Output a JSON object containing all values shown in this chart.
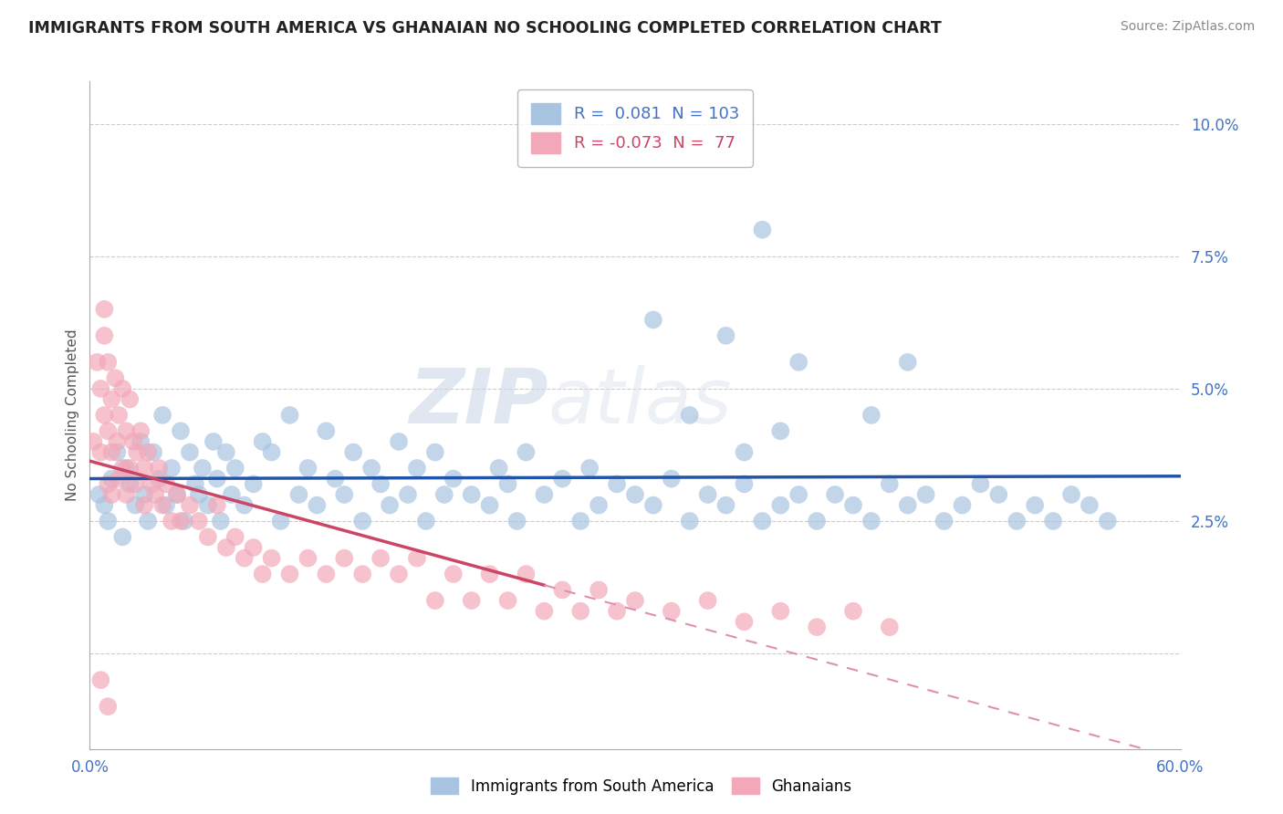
{
  "title": "IMMIGRANTS FROM SOUTH AMERICA VS GHANAIAN NO SCHOOLING COMPLETED CORRELATION CHART",
  "source": "Source: ZipAtlas.com",
  "ylabel_label": "No Schooling Completed",
  "legend_label1": "Immigrants from South America",
  "legend_label2": "Ghanaians",
  "r1": 0.081,
  "n1": 103,
  "r2": -0.073,
  "n2": 77,
  "color1": "#a8c4e0",
  "color2": "#f2a8b8",
  "trendline_color1": "#2255aa",
  "trendline_color2": "#cc4466",
  "trendline_color2_dashed": "#e090a8",
  "xlim": [
    0.0,
    0.6
  ],
  "ylim": [
    -0.018,
    0.108
  ],
  "yticks": [
    0.0,
    0.025,
    0.05,
    0.075,
    0.1
  ],
  "ytick_labels": [
    "",
    "2.5%",
    "5.0%",
    "7.5%",
    "10.0%"
  ],
  "xticks": [
    0.0,
    0.1,
    0.2,
    0.3,
    0.4,
    0.5,
    0.6
  ],
  "xtick_labels": [
    "0.0%",
    "",
    "",
    "",
    "",
    "",
    "60.0%"
  ],
  "watermark_zip": "ZIP",
  "watermark_atlas": "atlas",
  "scatter1_x": [
    0.005,
    0.008,
    0.01,
    0.012,
    0.015,
    0.018,
    0.02,
    0.022,
    0.025,
    0.028,
    0.03,
    0.032,
    0.035,
    0.038,
    0.04,
    0.042,
    0.045,
    0.048,
    0.05,
    0.052,
    0.055,
    0.058,
    0.06,
    0.062,
    0.065,
    0.068,
    0.07,
    0.072,
    0.075,
    0.078,
    0.08,
    0.085,
    0.09,
    0.095,
    0.1,
    0.105,
    0.11,
    0.115,
    0.12,
    0.125,
    0.13,
    0.135,
    0.14,
    0.145,
    0.15,
    0.155,
    0.16,
    0.165,
    0.17,
    0.175,
    0.18,
    0.185,
    0.19,
    0.195,
    0.2,
    0.21,
    0.22,
    0.225,
    0.23,
    0.235,
    0.24,
    0.25,
    0.26,
    0.27,
    0.275,
    0.28,
    0.29,
    0.3,
    0.31,
    0.32,
    0.33,
    0.34,
    0.35,
    0.36,
    0.37,
    0.38,
    0.39,
    0.4,
    0.41,
    0.42,
    0.43,
    0.44,
    0.45,
    0.46,
    0.47,
    0.48,
    0.49,
    0.5,
    0.51,
    0.52,
    0.53,
    0.54,
    0.55,
    0.56,
    0.35,
    0.37,
    0.39,
    0.43,
    0.45,
    0.31,
    0.33,
    0.36,
    0.38
  ],
  "scatter1_y": [
    0.03,
    0.028,
    0.025,
    0.033,
    0.038,
    0.022,
    0.035,
    0.032,
    0.028,
    0.04,
    0.03,
    0.025,
    0.038,
    0.033,
    0.045,
    0.028,
    0.035,
    0.03,
    0.042,
    0.025,
    0.038,
    0.032,
    0.03,
    0.035,
    0.028,
    0.04,
    0.033,
    0.025,
    0.038,
    0.03,
    0.035,
    0.028,
    0.032,
    0.04,
    0.038,
    0.025,
    0.045,
    0.03,
    0.035,
    0.028,
    0.042,
    0.033,
    0.03,
    0.038,
    0.025,
    0.035,
    0.032,
    0.028,
    0.04,
    0.03,
    0.035,
    0.025,
    0.038,
    0.03,
    0.033,
    0.03,
    0.028,
    0.035,
    0.032,
    0.025,
    0.038,
    0.03,
    0.033,
    0.025,
    0.035,
    0.028,
    0.032,
    0.03,
    0.028,
    0.033,
    0.025,
    0.03,
    0.028,
    0.032,
    0.025,
    0.028,
    0.03,
    0.025,
    0.03,
    0.028,
    0.025,
    0.032,
    0.028,
    0.03,
    0.025,
    0.028,
    0.032,
    0.03,
    0.025,
    0.028,
    0.025,
    0.03,
    0.028,
    0.025,
    0.06,
    0.08,
    0.055,
    0.045,
    0.055,
    0.063,
    0.045,
    0.038,
    0.042
  ],
  "scatter2_x": [
    0.002,
    0.004,
    0.006,
    0.006,
    0.008,
    0.008,
    0.01,
    0.01,
    0.01,
    0.012,
    0.012,
    0.012,
    0.014,
    0.015,
    0.016,
    0.016,
    0.018,
    0.018,
    0.02,
    0.02,
    0.022,
    0.022,
    0.024,
    0.025,
    0.026,
    0.028,
    0.03,
    0.03,
    0.032,
    0.034,
    0.036,
    0.038,
    0.04,
    0.042,
    0.045,
    0.048,
    0.05,
    0.055,
    0.06,
    0.065,
    0.07,
    0.075,
    0.08,
    0.085,
    0.09,
    0.095,
    0.1,
    0.11,
    0.12,
    0.13,
    0.14,
    0.15,
    0.16,
    0.17,
    0.18,
    0.19,
    0.2,
    0.21,
    0.22,
    0.23,
    0.24,
    0.25,
    0.26,
    0.27,
    0.28,
    0.29,
    0.3,
    0.32,
    0.34,
    0.36,
    0.38,
    0.4,
    0.42,
    0.44,
    0.006,
    0.008,
    0.01
  ],
  "scatter2_y": [
    0.04,
    0.055,
    0.05,
    0.038,
    0.06,
    0.045,
    0.055,
    0.042,
    0.032,
    0.048,
    0.038,
    0.03,
    0.052,
    0.04,
    0.045,
    0.033,
    0.05,
    0.035,
    0.042,
    0.03,
    0.048,
    0.035,
    0.04,
    0.032,
    0.038,
    0.042,
    0.035,
    0.028,
    0.038,
    0.032,
    0.03,
    0.035,
    0.028,
    0.032,
    0.025,
    0.03,
    0.025,
    0.028,
    0.025,
    0.022,
    0.028,
    0.02,
    0.022,
    0.018,
    0.02,
    0.015,
    0.018,
    0.015,
    0.018,
    0.015,
    0.018,
    0.015,
    0.018,
    0.015,
    0.018,
    0.01,
    0.015,
    0.01,
    0.015,
    0.01,
    0.015,
    0.008,
    0.012,
    0.008,
    0.012,
    0.008,
    0.01,
    0.008,
    0.01,
    0.006,
    0.008,
    0.005,
    0.008,
    0.005,
    -0.005,
    0.065,
    -0.01
  ]
}
